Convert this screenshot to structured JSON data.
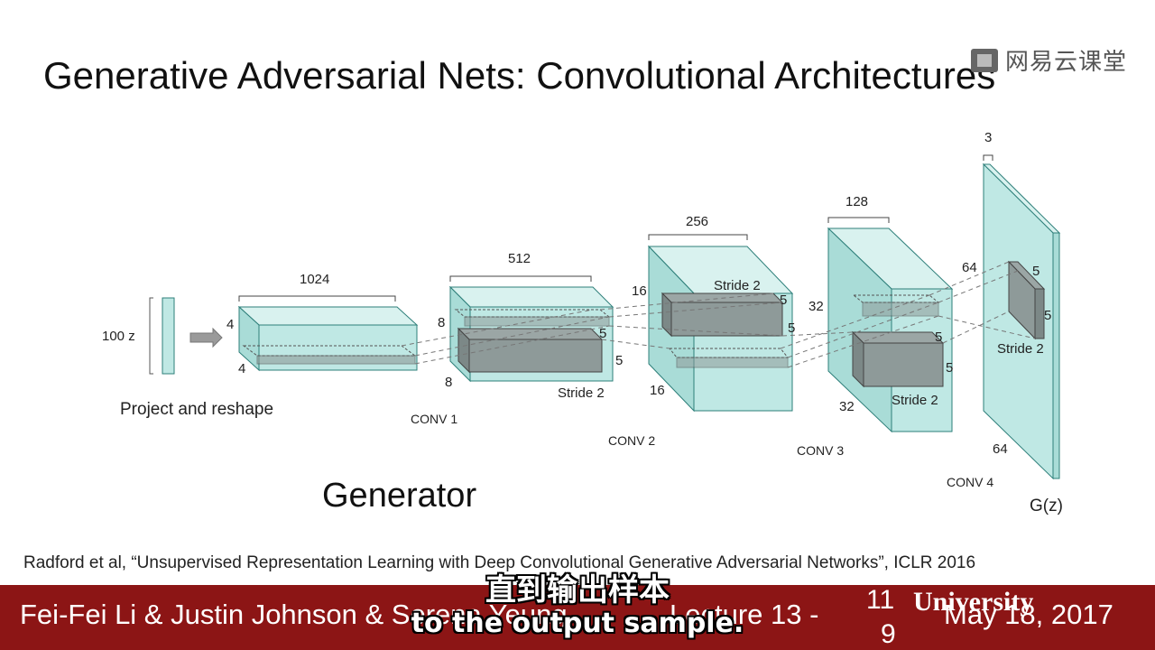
{
  "title": "Generative Adversarial Nets: Convolutional Architectures",
  "watermark": {
    "text": "网易云课堂",
    "icon": "netease-cloud-classroom-logo-icon"
  },
  "diagram": {
    "input": {
      "label": "100 z",
      "caption": "Project and reshape"
    },
    "layer0": {
      "depth": "1024",
      "height": "4",
      "width": "4"
    },
    "layer1": {
      "name": "CONV 1",
      "depth": "512",
      "height": "8",
      "width": "8",
      "kernel_h": "5",
      "kernel_w": "5",
      "stride": "Stride 2"
    },
    "layer2": {
      "name": "CONV 2",
      "depth": "256",
      "height": "16",
      "width": "16",
      "kernel_h": "5",
      "kernel_w": "5",
      "stride": "Stride 2"
    },
    "layer3": {
      "name": "CONV 3",
      "depth": "128",
      "height": "32",
      "width": "32",
      "kernel_h": "5",
      "kernel_w": "5",
      "stride": "Stride 2"
    },
    "layer4": {
      "name": "CONV 4",
      "depth": "3",
      "height": "64",
      "width": "64",
      "kernel_h": "5",
      "kernel_w": "5",
      "stride": "Stride 2"
    },
    "output": "G(z)",
    "colors": {
      "box_face": "#bfe8e4",
      "box_edge": "#2e7f7a",
      "kernel": "#8e9a99",
      "arrow": "#9a9a9a"
    }
  },
  "generator_label": "Generator",
  "citation": "Radford et al, “Unsupervised Representation Learning with Deep Convolutional Generative Adversarial Networks”, ICLR 2016",
  "footer": {
    "authors": "Fei-Fei Li & Justin Johnson & Serena Yeung",
    "lecture": "Lecture 13 -",
    "page_top": "11",
    "page_bottom": "9",
    "university": "University",
    "date": "May 18, 2017",
    "background": "#8c1515"
  },
  "subtitles": {
    "chinese": "直到输出样本",
    "english": "to the output sample."
  }
}
